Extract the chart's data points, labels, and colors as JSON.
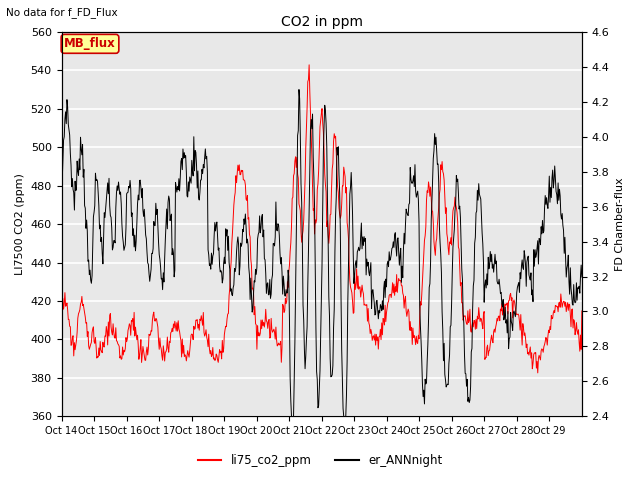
{
  "title": "CO2 in ppm",
  "title_upper_left": "No data for f_FD_Flux",
  "ylabel_left": "LI7500 CO2 (ppm)",
  "ylabel_right": "FD Chamber-flux",
  "ylim_left": [
    360,
    560
  ],
  "ylim_right": [
    2.4,
    4.6
  ],
  "yticks_left": [
    360,
    380,
    400,
    420,
    440,
    460,
    480,
    500,
    520,
    540,
    560
  ],
  "yticks_right": [
    2.4,
    2.6,
    2.8,
    3.0,
    3.2,
    3.4,
    3.6,
    3.8,
    4.0,
    4.2,
    4.4,
    4.6
  ],
  "xtick_labels": [
    "Oct 14",
    "Oct 15",
    "Oct 16",
    "Oct 17",
    "Oct 18",
    "Oct 19",
    "Oct 20",
    "Oct 21",
    "Oct 22",
    "Oct 23",
    "Oct 24",
    "Oct 25",
    "Oct 26",
    "Oct 27",
    "Oct 28",
    "Oct 29"
  ],
  "legend_entries": [
    "li75_co2_ppm",
    "er_ANNnight"
  ],
  "legend_colors": [
    "red",
    "black"
  ],
  "mb_flux_label": "MB_flux",
  "mb_flux_color": "#cc0000",
  "mb_flux_bg": "#ffff99",
  "background_color": "#e8e8e8",
  "grid_color": "white",
  "line1_color": "red",
  "line2_color": "black",
  "figsize": [
    6.4,
    4.8
  ],
  "dpi": 100
}
